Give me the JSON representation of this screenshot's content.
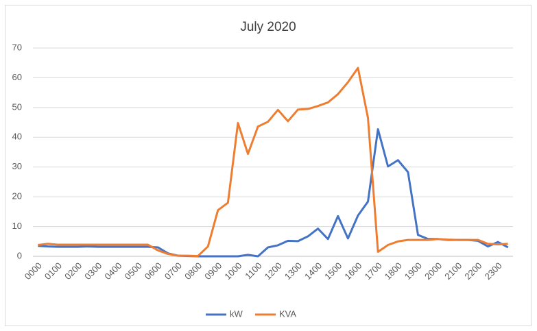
{
  "chart_data": {
    "type": "line",
    "title": "July 2020",
    "categories": [
      "0000",
      null,
      "0100",
      null,
      "0200",
      null,
      "0300",
      null,
      "0400",
      null,
      "0500",
      null,
      "0600",
      null,
      "0700",
      null,
      "0800",
      null,
      "0900",
      null,
      "1000",
      null,
      "1100",
      null,
      "1200",
      null,
      "1300",
      null,
      "1400",
      null,
      "1500",
      null,
      "1600",
      null,
      "1700",
      null,
      "1800",
      null,
      "1900",
      null,
      "2000",
      null,
      "2100",
      null,
      "2200",
      null,
      "2300",
      null
    ],
    "series": [
      {
        "name": "kW",
        "color": "#4472c4",
        "values": [
          3.5,
          3.3,
          3.2,
          3.2,
          3.2,
          3.3,
          3.2,
          3.2,
          3.2,
          3.2,
          3.2,
          3.2,
          3,
          1,
          0.2,
          0.1,
          0,
          0,
          0,
          0,
          0,
          0.5,
          0,
          3,
          3.7,
          5.2,
          5.1,
          6.7,
          9.3,
          5.8,
          13.5,
          6,
          13.7,
          18.4,
          42.7,
          30.2,
          32.3,
          28.3,
          7.2,
          5.8,
          5.8,
          5.5,
          5.5,
          5.5,
          5.2,
          3.3,
          4.8,
          3
        ]
      },
      {
        "name": "KVA",
        "color": "#ed7d31",
        "values": [
          3.8,
          4.2,
          3.9,
          3.9,
          3.9,
          3.9,
          3.9,
          3.9,
          3.9,
          3.9,
          3.9,
          3.9,
          2,
          0.8,
          0.2,
          0.2,
          0.1,
          3.3,
          15.5,
          18,
          44.8,
          34.4,
          43.6,
          45.2,
          49.2,
          45.4,
          49.3,
          49.5,
          50.5,
          51.7,
          54.5,
          58.5,
          63.3,
          46.5,
          1.5,
          3.8,
          5,
          5.5,
          5.5,
          5.5,
          5.8,
          5.6,
          5.5,
          5.5,
          5.5,
          4.2,
          4,
          4.2
        ]
      }
    ],
    "ylim": [
      0,
      70
    ],
    "yticks": [
      0,
      10,
      20,
      30,
      40,
      50,
      60,
      70
    ],
    "grid": true,
    "legend": "bottom"
  }
}
